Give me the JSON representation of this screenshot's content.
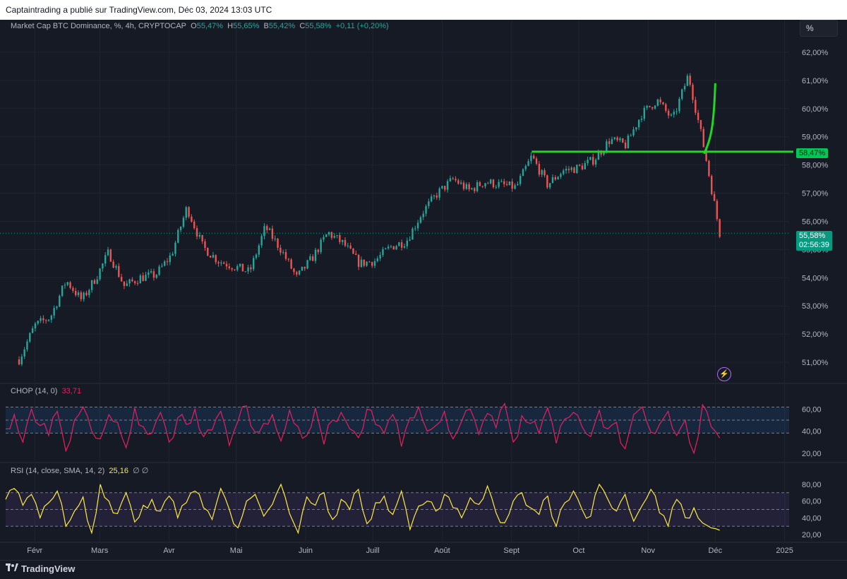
{
  "header": {
    "publisher_line": "Captaintrading a publié sur TradingView.com, Déc 03, 2024 13:03 UTC"
  },
  "main_legend": {
    "title": "Market Cap BTC Dominance, %, 4h, CRYPTOCAP",
    "o_label": "O",
    "o_value": "55,47%",
    "h_label": "H",
    "h_value": "55,65%",
    "b_label": "B",
    "b_value": "55,42%",
    "c_label": "C",
    "c_value": "55,58%",
    "change": "+0,11 (+0,20%)"
  },
  "scale_button": "%",
  "level_tag": "58,47%",
  "last_tag": {
    "price": "55,58%",
    "countdown": "02:56:39"
  },
  "chop_legend": {
    "name": "CHOP (14, 0)",
    "value": "33,71"
  },
  "rsi_legend": {
    "name": "RSI (14, close, SMA, 14, 2)",
    "value": "25,16",
    "extra": "∅  ∅"
  },
  "footer": {
    "brand": "TradingView"
  },
  "icons": {
    "flash": "lightning-icon",
    "brand": "tradingview-logo-icon"
  },
  "colors": {
    "background": "#161a25",
    "up": "#26a69a",
    "down": "#ef5350",
    "level_line": "#22d622",
    "chop": "#e91e63",
    "rsi": "#ffeb3b",
    "last_line": "#089981"
  },
  "chart_data": [
    {
      "type": "candlestick",
      "title": "Market Cap BTC Dominance, %, 4h, CRYPTOCAP",
      "x_ticks": [
        "Févr",
        "Mars",
        "Avr",
        "Mai",
        "Juin",
        "Juill",
        "Août",
        "Sept",
        "Oct",
        "Nov",
        "Déc",
        "2025"
      ],
      "y_ticks": [
        "62,00%",
        "61,00%",
        "60,00%",
        "59,00%",
        "58,00%",
        "57,00%",
        "56,00%",
        "55,00%",
        "54,00%",
        "53,00%",
        "52,00%",
        "51,00%"
      ],
      "ylim": [
        50.5,
        62.4
      ],
      "series": [
        {
          "name": "BTC Dominance (%)",
          "x": [
            "2024-01-25",
            "2024-02-01",
            "2024-02-08",
            "2024-02-15",
            "2024-02-22",
            "2024-02-29",
            "2024-03-05",
            "2024-03-12",
            "2024-03-19",
            "2024-03-26",
            "2024-04-02",
            "2024-04-09",
            "2024-04-16",
            "2024-04-23",
            "2024-04-30",
            "2024-05-07",
            "2024-05-14",
            "2024-05-21",
            "2024-05-28",
            "2024-06-04",
            "2024-06-11",
            "2024-06-18",
            "2024-06-25",
            "2024-07-02",
            "2024-07-09",
            "2024-07-16",
            "2024-07-23",
            "2024-07-30",
            "2024-08-06",
            "2024-08-13",
            "2024-08-20",
            "2024-08-27",
            "2024-09-03",
            "2024-09-10",
            "2024-09-17",
            "2024-09-24",
            "2024-10-01",
            "2024-10-08",
            "2024-10-15",
            "2024-10-22",
            "2024-10-29",
            "2024-11-05",
            "2024-11-12",
            "2024-11-19",
            "2024-11-26",
            "2024-12-03"
          ],
          "values": [
            51.1,
            52.3,
            52.6,
            53.9,
            53.2,
            54.1,
            54.9,
            53.7,
            54.0,
            54.1,
            54.8,
            56.5,
            55.1,
            54.6,
            54.4,
            54.2,
            55.8,
            55.0,
            54.0,
            54.7,
            55.6,
            55.2,
            54.5,
            54.6,
            55.1,
            55.3,
            56.3,
            57.0,
            57.5,
            57.1,
            57.4,
            57.3,
            57.2,
            58.3,
            57.3,
            57.8,
            57.9,
            58.2,
            58.9,
            58.7,
            59.8,
            60.3,
            59.6,
            61.2,
            58.6,
            55.58
          ]
        },
        {
          "name": "Projection",
          "x": [
            "2024-11-26",
            "2024-12-01"
          ],
          "values": [
            58.4,
            60.9
          ]
        }
      ],
      "horizontal_level": 58.47,
      "last_value": 55.58,
      "grid": true
    },
    {
      "type": "line",
      "title": "CHOP (14, 0)",
      "y_ticks": [
        "60,00",
        "40,00",
        "20,00"
      ],
      "ylim": [
        16,
        66
      ],
      "bands": [
        38.2,
        50,
        61.8
      ],
      "series": [
        {
          "name": "CHOP",
          "values": [
            42,
            55,
            30,
            60,
            45,
            36,
            58,
            22,
            50,
            62,
            40,
            33,
            55,
            48,
            25,
            61,
            44,
            38,
            57,
            30,
            52,
            46,
            60,
            35,
            41,
            58,
            27,
            49,
            63,
            39,
            47,
            55,
            31,
            59,
            44,
            36,
            61,
            28,
            50,
            57,
            42,
            34,
            60,
            46,
            38,
            55,
            26,
            52,
            62,
            40,
            45,
            58,
            33,
            49,
            60,
            37,
            56,
            43,
            65,
            30,
            54,
            47,
            38,
            61,
            29,
            51,
            57,
            44,
            35,
            59,
            42,
            48,
            24,
            55,
            62,
            39,
            46,
            58,
            36,
            50,
            20,
            64,
            44,
            33.71
          ]
        }
      ]
    },
    {
      "type": "line",
      "title": "RSI (14, close, SMA, 14, 2)",
      "y_ticks": [
        "80,00",
        "60,00",
        "40,00",
        "20,00"
      ],
      "ylim": [
        15,
        85
      ],
      "bands": [
        30,
        50,
        70
      ],
      "series": [
        {
          "name": "RSI",
          "values": [
            62,
            75,
            55,
            68,
            40,
            58,
            72,
            30,
            48,
            65,
            22,
            80,
            60,
            45,
            70,
            35,
            55,
            62,
            48,
            66,
            40,
            58,
            72,
            52,
            38,
            75,
            50,
            28,
            60,
            68,
            42,
            56,
            80,
            45,
            22,
            65,
            55,
            70,
            38,
            62,
            50,
            74,
            33,
            58,
            66,
            44,
            72,
            26,
            54,
            60,
            48,
            68,
            52,
            40,
            64,
            56,
            78,
            46,
            34,
            60,
            70,
            52,
            44,
            66,
            30,
            58,
            72,
            50,
            42,
            80,
            62,
            48,
            68,
            36,
            55,
            74,
            46,
            30,
            62,
            40,
            52,
            34,
            28,
            25.16
          ]
        }
      ]
    }
  ]
}
